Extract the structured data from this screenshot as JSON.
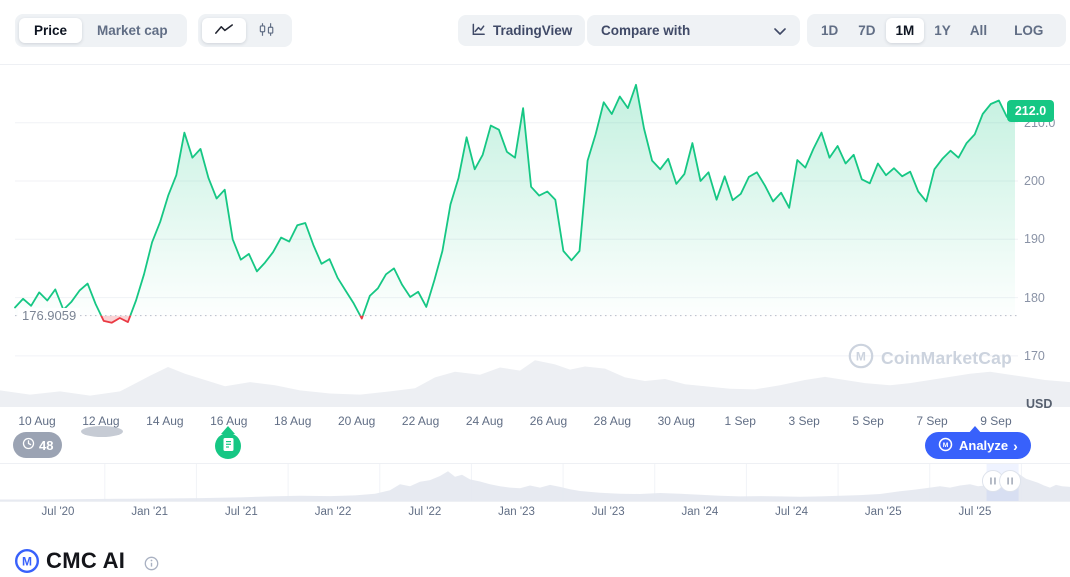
{
  "toolbar": {
    "metric_tabs": [
      {
        "label": "Price"
      },
      {
        "label": "Market cap"
      }
    ],
    "tradingview_label": "TradingView",
    "compare_label": "Compare with",
    "ranges": [
      "1D",
      "7D",
      "1M",
      "1Y",
      "All"
    ],
    "active_range": "1M",
    "log_label": "LOG",
    "more_label": "···"
  },
  "chart": {
    "current_price_badge": "212.0",
    "baseline_label": "176.9059",
    "unit_label": "USD",
    "watermark": "CoinMarketCap"
  },
  "annotations": {
    "history_count": "48",
    "analyze_label": "Analyze",
    "analyze_arrow": "›"
  },
  "footer": {
    "title": "CMC AI"
  },
  "colors": {
    "green": "#16c784",
    "red": "#ea3943",
    "blue": "#3861fb",
    "gray_text": "#616e85"
  },
  "chart_data": {
    "type": "area",
    "unit": "USD",
    "baseline": 176.9059,
    "current_price": 212.0,
    "ylim": [
      165,
      218
    ],
    "y_ticks": [
      170,
      180,
      190,
      200,
      210
    ],
    "y_tick_labels": [
      "210.0",
      "200",
      "190",
      "180",
      "170"
    ],
    "x_tick_labels": [
      "10 Aug",
      "12 Aug",
      "14 Aug",
      "16 Aug",
      "18 Aug",
      "20 Aug",
      "22 Aug",
      "24 Aug",
      "26 Aug",
      "28 Aug",
      "30 Aug",
      "1 Sep",
      "3 Sep",
      "5 Sep",
      "7 Sep",
      "9 Sep"
    ],
    "points_per_day": 4,
    "values": [
      178.3,
      179.8,
      178.6,
      180.9,
      179.5,
      181.4,
      177.9,
      179.3,
      181.2,
      182.4,
      178.9,
      176.0,
      175.7,
      176.5,
      175.8,
      179.5,
      184.0,
      189.5,
      193.0,
      197.5,
      201.0,
      208.3,
      204.0,
      205.5,
      200.5,
      197.0,
      198.5,
      190.0,
      186.5,
      187.5,
      184.5,
      186.0,
      187.8,
      190.3,
      189.6,
      192.4,
      192.8,
      189.0,
      185.8,
      186.6,
      183.4,
      181.2,
      179.0,
      176.4,
      180.3,
      181.6,
      184.0,
      185.0,
      182.2,
      180.1,
      181.0,
      178.4,
      183.0,
      188.0,
      196.0,
      200.5,
      207.5,
      202.0,
      204.5,
      209.5,
      208.8,
      205.0,
      204.0,
      212.5,
      199.0,
      197.5,
      198.2,
      196.8,
      188.0,
      186.4,
      188.0,
      203.5,
      208.0,
      213.5,
      211.5,
      214.5,
      212.5,
      216.5,
      209.0,
      203.5,
      202.0,
      203.8,
      199.5,
      201.2,
      206.5,
      200.0,
      201.5,
      196.8,
      200.8,
      196.7,
      197.8,
      200.7,
      201.5,
      199.2,
      196.5,
      198.0,
      195.4,
      203.6,
      202.3,
      205.5,
      208.3,
      204.0,
      206.0,
      203.0,
      204.5,
      200.3,
      199.6,
      203.0,
      201.0,
      202.2,
      200.8,
      201.6,
      198.2,
      196.5,
      202.0,
      203.8,
      205.2,
      204.0,
      206.5,
      208.0,
      211.5,
      213.2,
      213.8,
      211.0,
      212.0
    ],
    "volume_profile": [
      [
        0,
        0.3
      ],
      [
        30,
        0.22
      ],
      [
        60,
        0.28
      ],
      [
        90,
        0.2
      ],
      [
        120,
        0.28
      ],
      [
        150,
        0.58
      ],
      [
        168,
        0.75
      ],
      [
        185,
        0.62
      ],
      [
        205,
        0.5
      ],
      [
        225,
        0.38
      ],
      [
        250,
        0.46
      ],
      [
        275,
        0.4
      ],
      [
        300,
        0.3
      ],
      [
        330,
        0.24
      ],
      [
        360,
        0.22
      ],
      [
        390,
        0.28
      ],
      [
        415,
        0.34
      ],
      [
        435,
        0.55
      ],
      [
        455,
        0.66
      ],
      [
        480,
        0.6
      ],
      [
        500,
        0.74
      ],
      [
        520,
        0.68
      ],
      [
        535,
        0.88
      ],
      [
        555,
        0.8
      ],
      [
        570,
        0.7
      ],
      [
        585,
        0.76
      ],
      [
        605,
        0.72
      ],
      [
        625,
        0.55
      ],
      [
        645,
        0.48
      ],
      [
        665,
        0.52
      ],
      [
        685,
        0.42
      ],
      [
        705,
        0.38
      ],
      [
        730,
        0.33
      ],
      [
        755,
        0.32
      ],
      [
        780,
        0.4
      ],
      [
        805,
        0.5
      ],
      [
        825,
        0.56
      ],
      [
        845,
        0.5
      ],
      [
        865,
        0.44
      ],
      [
        890,
        0.4
      ],
      [
        910,
        0.44
      ],
      [
        930,
        0.5
      ],
      [
        950,
        0.56
      ],
      [
        970,
        0.62
      ],
      [
        990,
        0.66
      ],
      [
        1010,
        0.6
      ],
      [
        1025,
        0.56
      ],
      [
        1045,
        0.5
      ],
      [
        1070,
        0.46
      ]
    ],
    "navigator": {
      "x_tick_labels": [
        "Jul '20",
        "Jan '21",
        "Jul '21",
        "Jan '22",
        "Jul '22",
        "Jan '23",
        "Jul '23",
        "Jan '24",
        "Jul '24",
        "Jan '25",
        "Jul '25"
      ],
      "profile": [
        [
          0,
          0.03
        ],
        [
          40,
          0.03
        ],
        [
          80,
          0.04
        ],
        [
          120,
          0.05
        ],
        [
          160,
          0.06
        ],
        [
          200,
          0.07
        ],
        [
          240,
          0.09
        ],
        [
          270,
          0.12
        ],
        [
          300,
          0.14
        ],
        [
          330,
          0.13
        ],
        [
          355,
          0.15
        ],
        [
          375,
          0.2
        ],
        [
          390,
          0.3
        ],
        [
          400,
          0.48
        ],
        [
          410,
          0.42
        ],
        [
          420,
          0.55
        ],
        [
          430,
          0.6
        ],
        [
          440,
          0.72
        ],
        [
          448,
          0.86
        ],
        [
          455,
          0.7
        ],
        [
          462,
          0.76
        ],
        [
          470,
          0.62
        ],
        [
          480,
          0.56
        ],
        [
          490,
          0.48
        ],
        [
          500,
          0.42
        ],
        [
          510,
          0.38
        ],
        [
          520,
          0.36
        ],
        [
          530,
          0.44
        ],
        [
          540,
          0.38
        ],
        [
          550,
          0.46
        ],
        [
          560,
          0.4
        ],
        [
          570,
          0.33
        ],
        [
          580,
          0.28
        ],
        [
          600,
          0.23
        ],
        [
          620,
          0.2
        ],
        [
          640,
          0.19
        ],
        [
          660,
          0.22
        ],
        [
          680,
          0.2
        ],
        [
          700,
          0.17
        ],
        [
          720,
          0.14
        ],
        [
          740,
          0.12
        ],
        [
          760,
          0.13
        ],
        [
          780,
          0.12
        ],
        [
          800,
          0.11
        ],
        [
          820,
          0.12
        ],
        [
          840,
          0.14
        ],
        [
          860,
          0.16
        ],
        [
          880,
          0.19
        ],
        [
          900,
          0.27
        ],
        [
          915,
          0.32
        ],
        [
          930,
          0.38
        ],
        [
          940,
          0.42
        ],
        [
          950,
          0.38
        ],
        [
          960,
          0.44
        ],
        [
          970,
          0.48
        ],
        [
          978,
          0.42
        ],
        [
          985,
          0.44
        ],
        [
          992,
          0.42
        ],
        [
          1000,
          0.54
        ],
        [
          1006,
          0.6
        ],
        [
          1010,
          0.76
        ],
        [
          1014,
          0.7
        ],
        [
          1018,
          0.8
        ],
        [
          1022,
          0.72
        ],
        [
          1026,
          0.64
        ],
        [
          1032,
          0.58
        ],
        [
          1038,
          0.52
        ],
        [
          1044,
          0.44
        ],
        [
          1050,
          0.38
        ],
        [
          1056,
          0.46
        ],
        [
          1062,
          0.42
        ],
        [
          1070,
          0.4
        ]
      ],
      "selection_frac": [
        0.922,
        0.952
      ],
      "handles_frac": [
        0.928,
        0.944
      ]
    }
  }
}
